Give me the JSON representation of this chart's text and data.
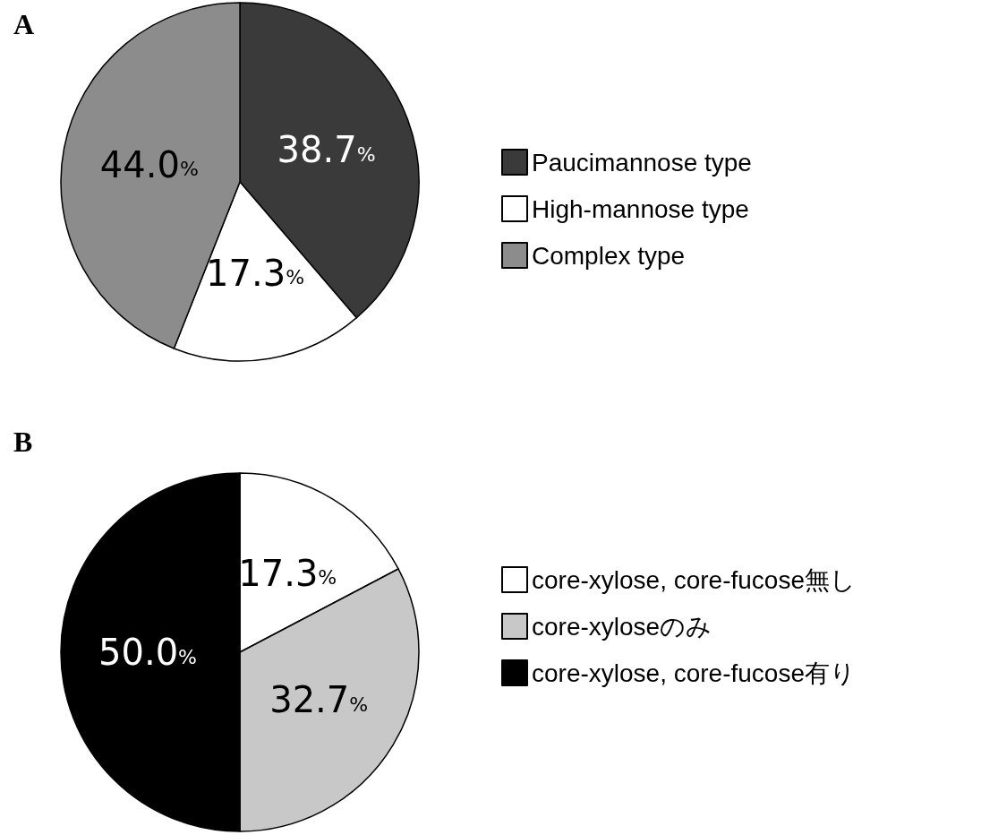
{
  "chart_data": [
    {
      "type": "pie",
      "title": "A",
      "categories": [
        "Paucimannose type",
        "High-mannose type",
        "Complex type"
      ],
      "values": [
        38.7,
        17.3,
        44.0
      ],
      "colors": [
        "#3a3a3a",
        "#ffffff",
        "#8c8c8c"
      ],
      "value_labels": [
        "38.7%",
        "17.3%",
        "44.0%"
      ],
      "legend": "right"
    },
    {
      "type": "pie",
      "title": "B",
      "categories": [
        "core-xylose, core-fucose無し",
        "core-xyloseのみ",
        "core-xylose, core-fucose有り"
      ],
      "values": [
        17.3,
        32.7,
        50.0
      ],
      "colors": [
        "#ffffff",
        "#c8c8c8",
        "#000000"
      ],
      "value_labels": [
        "17.3%",
        "32.7%",
        "50.0%"
      ],
      "legend": "right"
    }
  ]
}
